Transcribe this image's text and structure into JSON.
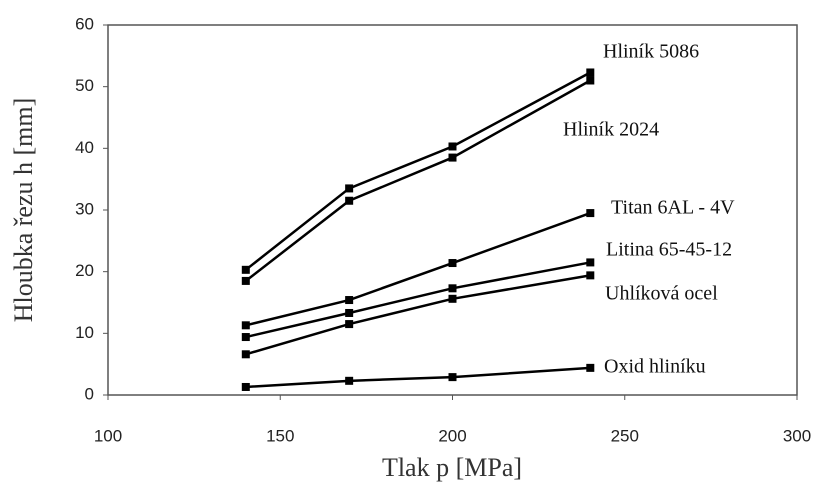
{
  "chart_data": {
    "type": "line",
    "x_label": "Tlak p [MPa]",
    "y_label": "Hloubka řezu h [mm]",
    "x": [
      140,
      170,
      200,
      240
    ],
    "series": [
      {
        "name": "Hliník 5086",
        "color": "#000000",
        "values": [
          20.3,
          33.5,
          40.3,
          52.3
        ]
      },
      {
        "name": "Hliník 2024",
        "color": "#000000",
        "values": [
          18.5,
          31.5,
          38.5,
          51
        ]
      },
      {
        "name": "Titan 6AL - 4V",
        "color": "#000000",
        "values": [
          11.3,
          15.4,
          21.4,
          29.5
        ]
      },
      {
        "name": "Litina 65-45-12",
        "color": "#000000",
        "values": [
          9.4,
          13.3,
          17.3,
          21.5
        ]
      },
      {
        "name": "Uhlíková ocel",
        "color": "#000000",
        "values": [
          6.6,
          11.5,
          15.6,
          19.4
        ]
      },
      {
        "name": "Oxid hliníku",
        "color": "#000000",
        "values": [
          1.3,
          2.3,
          2.9,
          4.4
        ]
      }
    ],
    "xlim": [
      100,
      300
    ],
    "xticks": [
      100,
      150,
      200,
      250,
      300
    ],
    "ylim": [
      0,
      60
    ],
    "yticks": [
      0,
      10,
      20,
      30,
      40,
      50,
      60
    ],
    "grid": false
  }
}
